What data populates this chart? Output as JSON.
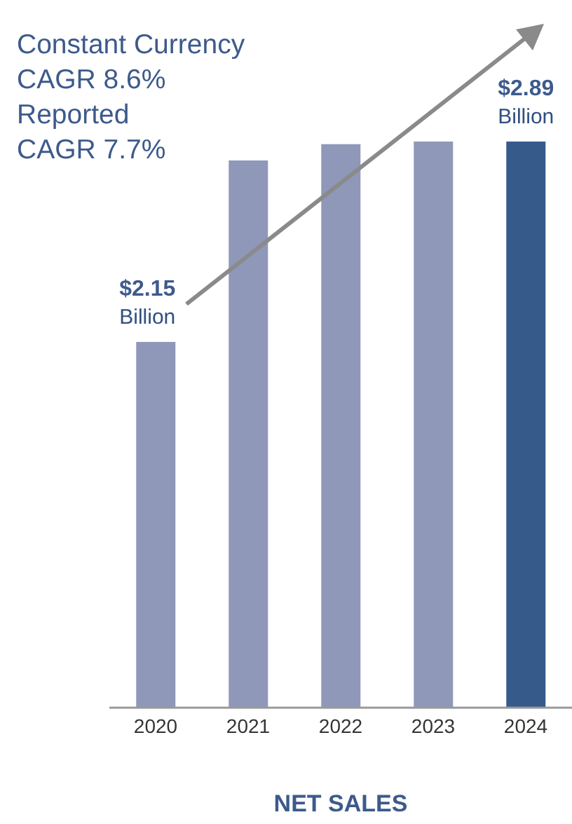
{
  "chart_data": {
    "type": "bar",
    "title": "NET SALES",
    "tick_labels": "x",
    "ylim": [
      0.8,
      2.89
    ],
    "categories": [
      "2020",
      "2021",
      "2022",
      "2023",
      "2024"
    ],
    "values": [
      2.15,
      2.82,
      2.88,
      2.89,
      2.89
    ],
    "colors": [
      "#8f98b9",
      "#8f98b9",
      "#8f98b9",
      "#8f98b9",
      "#365b8b"
    ],
    "value_labels": [
      "$2.15\nBillion",
      null,
      null,
      null,
      "$2.89\nBillion"
    ],
    "annotations": [
      "Constant Currency\nCAGR 8.6%\nReported\nCAGR 7.7%"
    ],
    "grid": false,
    "legend": false
  }
}
